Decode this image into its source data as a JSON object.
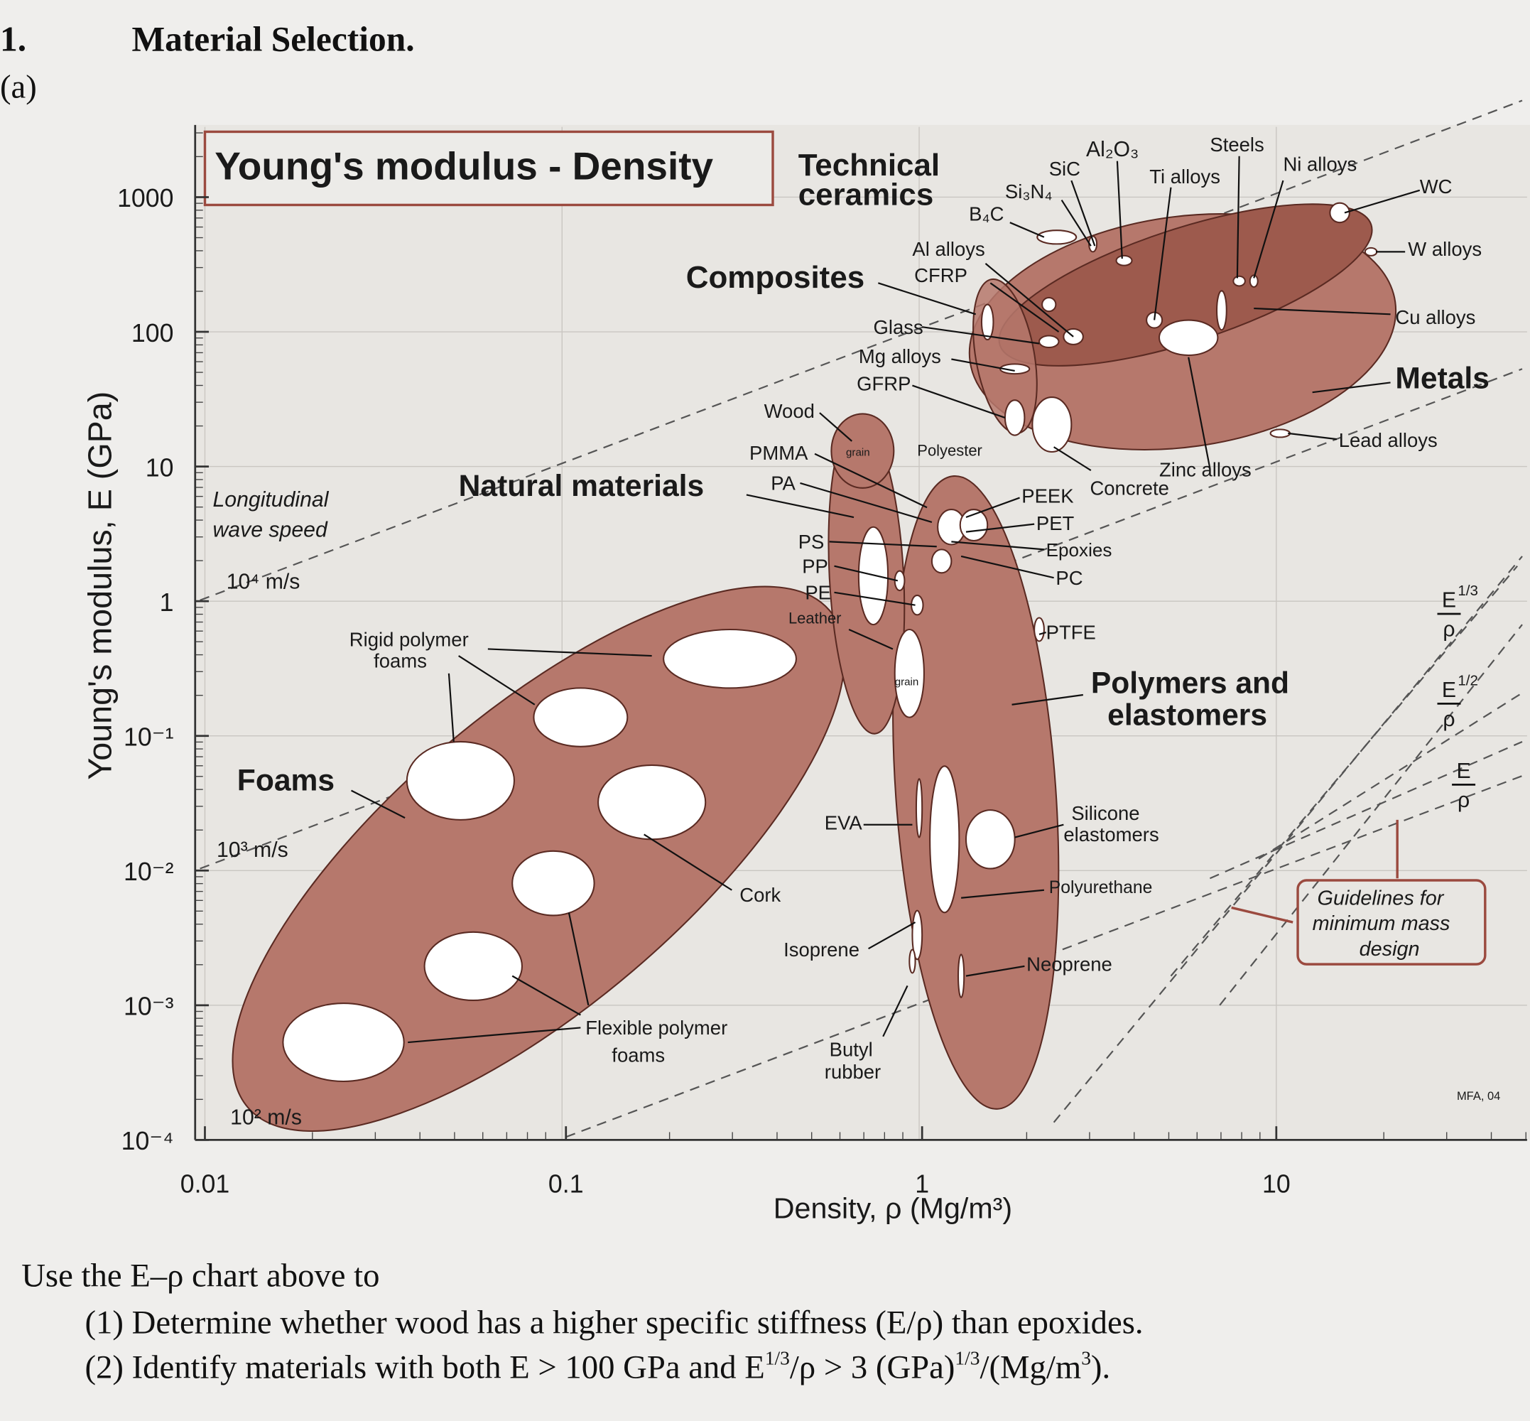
{
  "header": {
    "number": "1.",
    "title": "Material Selection.",
    "part": "(a)"
  },
  "figure": {
    "title": "Young's modulus - Density",
    "y_axis_label": "Young's modulus, E (GPa)",
    "x_axis_label": "Density, ρ (Mg/m³)",
    "x_ticks": [
      "0.01",
      "0.1",
      "1",
      "10"
    ],
    "y_ticks": [
      "1000",
      "100",
      "10",
      "1",
      "10⁻¹",
      "10⁻²",
      "10⁻³",
      "10⁻⁴"
    ],
    "labels": [
      "Technical",
      "ceramics",
      "Composites",
      "Natural materials",
      "Metals",
      "Polymers and",
      "elastomers",
      "Foams",
      "SiC",
      "Al₂O₃",
      "Steels",
      "Ti alloys",
      "Ni alloys",
      "WC",
      "W alloys",
      "Cu alloys",
      "Lead alloys",
      "Zinc alloys",
      "Concrete",
      "B₄C",
      "Si₃N₄",
      "Al alloys",
      "CFRP",
      "Glass",
      "Mg alloys",
      "GFRP",
      "Wood",
      "PMMA",
      "PA",
      "PS",
      "PP",
      "PE",
      "Leather",
      "Polyester",
      "PEEK",
      "PET",
      "Epoxies",
      "PC",
      "PTFE",
      "Silicone",
      "elastomers",
      "Polyurethane",
      "Neoprene",
      "EVA",
      "Cork",
      "Isoprene",
      "Butyl",
      "rubber",
      "Flexible polymer",
      "foams",
      "Rigid polymer",
      "foams",
      "Longitudinal",
      "wave speed",
      "10⁴ m/s",
      "10³ m/s",
      "10² m/s",
      "Guidelines for",
      "minimum mass",
      "design",
      "MFA, 04",
      "grain",
      "grain"
    ],
    "guidelines": [
      {
        "num": "E",
        "den": "ρ",
        "exp": "1/3"
      },
      {
        "num": "E",
        "den": "ρ",
        "exp": "1/2"
      },
      {
        "num": "E",
        "den": "ρ"
      }
    ]
  },
  "question": {
    "intro": "Use the E–ρ chart above to",
    "items": [
      [
        "(1) Determine whether wood has a higher specific stiffness (E/ρ) than epoxides."
      ],
      [
        "(2) Identify materials with both E > 100 GPa and E",
        "1/3",
        "/ρ > 3 (GPa)",
        "1/3",
        "/(Mg/m",
        "3",
        ")."
      ]
    ]
  }
}
